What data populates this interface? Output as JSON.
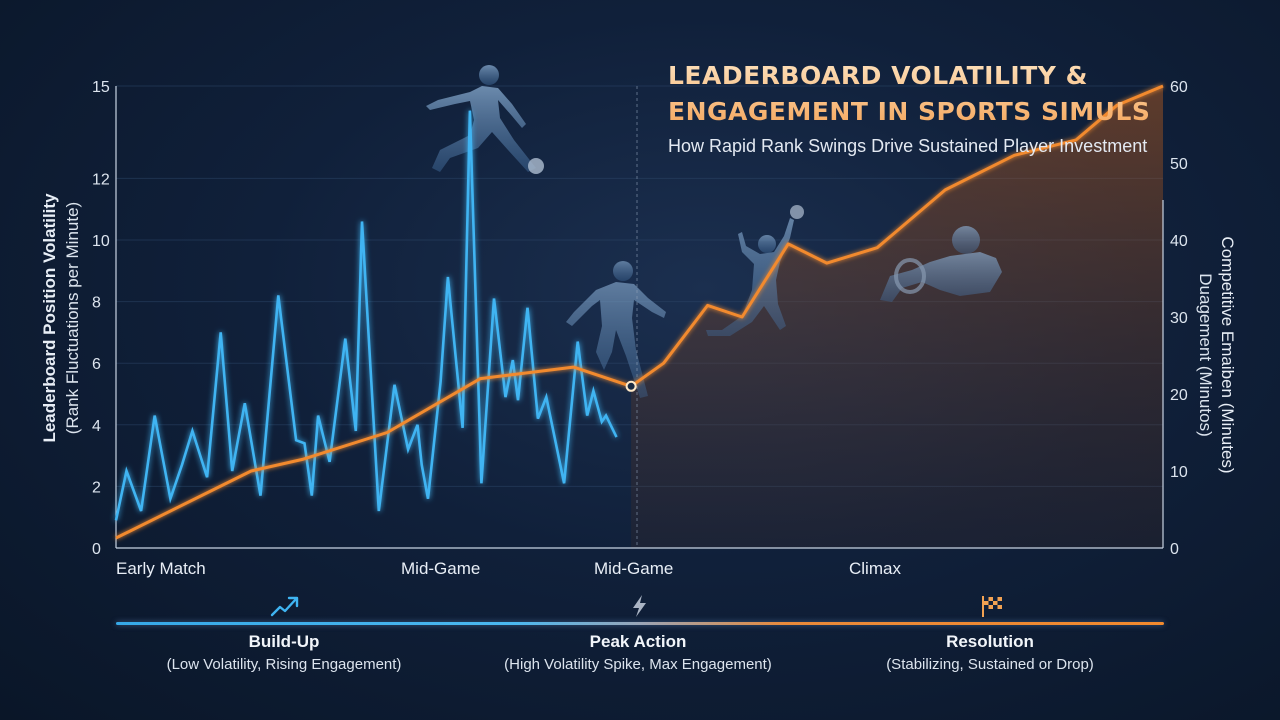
{
  "header": {
    "title_line1": "LEADERBOARD VOLATILITY &",
    "title_line2": "ENGAGEMENT IN SPORTS SIMULS",
    "subtitle": "How Rapid Rank Swings Drive Sustained Player Investment"
  },
  "chart_data": {
    "type": "line",
    "title": "LEADERBOARD VOLATILITY & ENGAGEMENT IN SPORTS SIMULS",
    "subtitle": "How Rapid Rank Swings Drive Sustained Player Investment",
    "xlabels": [
      "Early Match",
      "Mid-Game",
      "Mid-Game",
      "Climax"
    ],
    "y_left": {
      "label_line1": "Leaderboard Position Volatility",
      "label_line2": "(Rank Fluctuations per Minute)",
      "ticks": [
        0,
        2,
        4,
        6,
        8,
        10,
        12,
        15
      ],
      "range": [
        0,
        15
      ]
    },
    "y_right": {
      "label_line1": "Competitive Emaiben (Minutes)",
      "label_line2": "Duagement (Minutos)",
      "ticks": [
        0,
        10,
        20,
        30,
        40,
        50,
        60
      ],
      "range": [
        0,
        60
      ]
    },
    "x_range": [
      0,
      100
    ],
    "grid": true,
    "series": [
      {
        "axis": "left",
        "color": "#3fb4f2",
        "points": [
          [
            0,
            0.9
          ],
          [
            1,
            2.5
          ],
          [
            2.4,
            1.2
          ],
          [
            3.7,
            4.3
          ],
          [
            5.2,
            1.6
          ],
          [
            6.3,
            2.7
          ],
          [
            7.3,
            3.8
          ],
          [
            8.7,
            2.3
          ],
          [
            10,
            7.0
          ],
          [
            11.1,
            2.5
          ],
          [
            12.3,
            4.7
          ],
          [
            13.8,
            1.7
          ],
          [
            15.5,
            8.2
          ],
          [
            17.2,
            3.5
          ],
          [
            18,
            3.4
          ],
          [
            18.7,
            1.7
          ],
          [
            19.3,
            4.3
          ],
          [
            20.4,
            2.8
          ],
          [
            21.9,
            6.8
          ],
          [
            22.9,
            3.8
          ],
          [
            23.5,
            10.6
          ],
          [
            25.1,
            1.2
          ],
          [
            26.6,
            5.3
          ],
          [
            27.9,
            3.2
          ],
          [
            28.8,
            4.0
          ],
          [
            29.2,
            2.7
          ],
          [
            29.8,
            1.6
          ],
          [
            31,
            5.4
          ],
          [
            31.7,
            8.8
          ],
          [
            33.1,
            3.9
          ],
          [
            33.8,
            14.2
          ],
          [
            34.9,
            2.1
          ],
          [
            36.1,
            8.1
          ],
          [
            37.2,
            4.9
          ],
          [
            37.9,
            6.1
          ],
          [
            38.4,
            4.8
          ],
          [
            39.3,
            7.8
          ],
          [
            40.3,
            4.2
          ],
          [
            41.1,
            4.9
          ],
          [
            42.8,
            2.1
          ],
          [
            44.1,
            6.7
          ],
          [
            45,
            4.3
          ],
          [
            45.6,
            5.1
          ],
          [
            46.4,
            4.1
          ],
          [
            46.8,
            4.3
          ],
          [
            47.8,
            3.6
          ]
        ]
      },
      {
        "axis": "right",
        "color": "#f28a2e",
        "points": [
          [
            0,
            1.3
          ],
          [
            12.9,
            10
          ],
          [
            17.8,
            11.5
          ],
          [
            25.9,
            15
          ],
          [
            34.8,
            22
          ],
          [
            43.7,
            23.5
          ],
          [
            49.2,
            21
          ],
          [
            52.3,
            24
          ],
          [
            56.5,
            31.5
          ],
          [
            59.8,
            30
          ],
          [
            64.2,
            39.5
          ],
          [
            67.9,
            37
          ],
          [
            72.7,
            39
          ],
          [
            79.2,
            46.5
          ],
          [
            85.8,
            51
          ],
          [
            91.7,
            53
          ],
          [
            95.6,
            57.5
          ],
          [
            100,
            60
          ]
        ]
      }
    ],
    "marker": {
      "series": 0,
      "x": 49.2
    }
  },
  "phases": [
    {
      "name": "Build-Up",
      "desc": "(Low Volatility, Rising Engagement)",
      "icon": "trend-up-icon"
    },
    {
      "name": "Peak Action",
      "desc": "(High Volatility Spike, Max Engagement)",
      "icon": "lightning-icon"
    },
    {
      "name": "Resolution",
      "desc": "(Stabilizing, Sustained or Drop)",
      "icon": "checkered-flag-icon"
    }
  ],
  "colors": {
    "volatility": "#3fb4f2",
    "engagement": "#f28a2e",
    "background": "#10203a"
  },
  "decor": [
    "soccer-player-silhouette",
    "runner-silhouette",
    "basketball-player-silhouette",
    "race-driver-silhouette"
  ]
}
